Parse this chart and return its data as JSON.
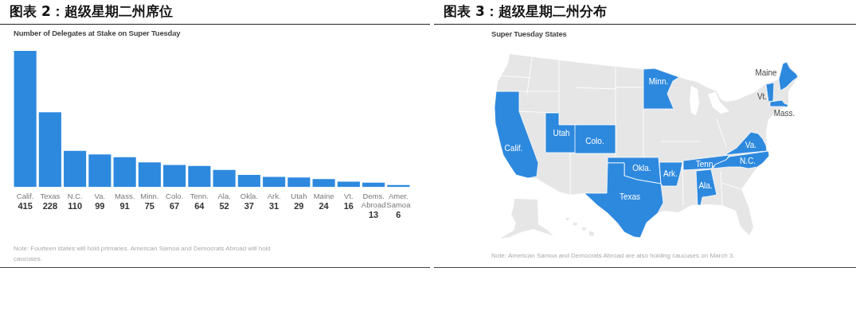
{
  "chart_data": [
    {
      "type": "bar",
      "title": "图表 2：超级星期二州席位",
      "subtitle": "Number of Delegates at Stake on Super Tuesday",
      "categories": [
        "Calif.",
        "Texas",
        "N.C.",
        "Va.",
        "Mass.",
        "Minn.",
        "Colo.",
        "Tenn.",
        "Ala.",
        "Okla.",
        "Ark.",
        "Utah",
        "Maine",
        "Vt.",
        "Dems. Abroad",
        "Amer. Samoa"
      ],
      "values": [
        415,
        228,
        110,
        99,
        91,
        75,
        67,
        64,
        52,
        37,
        31,
        29,
        24,
        16,
        13,
        6
      ],
      "color": "#2d89de",
      "data_labels": true,
      "annotations": [
        "Note: Fourteen states will hold primaries. American Samoa and Democrats Abroad will hold caucuses."
      ]
    },
    {
      "type": "other",
      "title": "图表 3：超级星期二州分布",
      "subtitle": "Super Tuesday States",
      "color": "#2d89de",
      "annotations": [
        "Calif.",
        "Utah",
        "Colo.",
        "Minn.",
        "Okla.",
        "Texas",
        "Ark.",
        "Tenn.",
        "Ala.",
        "Va.",
        "N.C.",
        "Maine",
        "Vt.",
        "Mass.",
        "Note: American Samoa and Democrats Abroad are also holding caucuses on March 3."
      ]
    }
  ]
}
